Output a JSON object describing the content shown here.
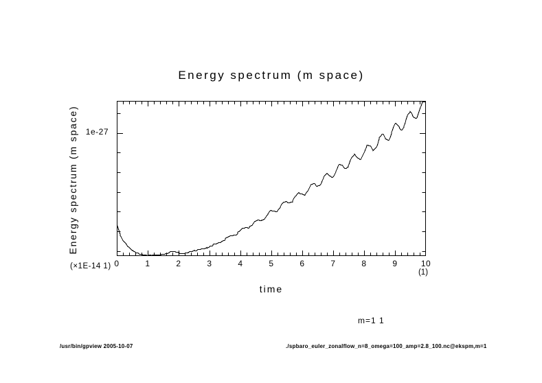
{
  "title": "Energy spectrum (m space)",
  "axes": {
    "y_label": "Energy spectrum (m space)",
    "y_tick_label": "1e-27",
    "y_factor_label": "(×1E-14 1)",
    "x_label": "time",
    "x_tick_labels": [
      "0",
      "1",
      "2",
      "3",
      "4",
      "5",
      "6",
      "7",
      "8",
      "9",
      "10"
    ],
    "x_unit_label": "(1)"
  },
  "annotation": "m=1 1",
  "footer": {
    "left": "/usr/bin/gpview  2005-10-07",
    "right": "./spbaro_euler_zonalflow_n=8_omega=100_amp=2.8_100.nc@ekspm,m=1"
  },
  "colors": {
    "foreground": "#000000",
    "background": "#ffffff"
  },
  "chart_data": {
    "type": "line",
    "title": "Energy spectrum (m space)",
    "xlabel": "time",
    "ylabel": "Energy spectrum (m space)",
    "x_unit": "(1)",
    "y_unit_factor": "(×1E-14 1)",
    "y_values_unit": "1e-27",
    "xlim": [
      0,
      10
    ],
    "ylim": [
      0,
      1.26
    ],
    "x_major_tick_step": 1,
    "x_minor_tick_step": 0.2,
    "y_major_tick_values": [
      1.0
    ],
    "y_minor_tick_values": [
      0.04,
      0.2,
      0.36,
      0.52,
      0.68,
      0.84,
      1.16
    ],
    "grid": false,
    "legend": null,
    "line_color": "#000000",
    "series": [
      {
        "name": "ekspm, m=1",
        "envelope_points": [
          [
            0.0,
            0.26
          ],
          [
            0.1,
            0.18
          ],
          [
            0.2,
            0.13
          ],
          [
            0.3,
            0.1
          ],
          [
            0.4,
            0.07
          ],
          [
            0.5,
            0.05
          ],
          [
            0.6,
            0.033
          ],
          [
            0.7,
            0.022
          ],
          [
            0.8,
            0.015
          ],
          [
            0.9,
            0.01
          ],
          [
            1.0,
            0.008
          ],
          [
            1.2,
            0.01
          ],
          [
            1.4,
            0.012
          ],
          [
            1.5,
            0.015
          ],
          [
            1.6,
            0.022
          ],
          [
            1.7,
            0.032
          ],
          [
            1.8,
            0.04
          ],
          [
            1.9,
            0.036
          ],
          [
            2.0,
            0.028
          ],
          [
            2.1,
            0.02
          ],
          [
            2.2,
            0.024
          ],
          [
            2.3,
            0.032
          ],
          [
            2.4,
            0.04
          ],
          [
            2.5,
            0.046
          ],
          [
            2.6,
            0.05
          ],
          [
            2.8,
            0.061
          ],
          [
            3.0,
            0.078
          ],
          [
            3.2,
            0.098
          ],
          [
            3.4,
            0.124
          ],
          [
            3.6,
            0.152
          ],
          [
            3.8,
            0.178
          ],
          [
            4.0,
            0.206
          ],
          [
            4.2,
            0.235
          ],
          [
            4.4,
            0.262
          ],
          [
            4.6,
            0.288
          ],
          [
            4.8,
            0.322
          ],
          [
            5.0,
            0.356
          ],
          [
            5.2,
            0.388
          ],
          [
            5.4,
            0.42
          ],
          [
            5.6,
            0.452
          ],
          [
            5.8,
            0.481
          ],
          [
            6.0,
            0.511
          ],
          [
            6.2,
            0.543
          ],
          [
            6.4,
            0.576
          ],
          [
            6.6,
            0.609
          ],
          [
            6.8,
            0.643
          ],
          [
            7.0,
            0.678
          ],
          [
            7.2,
            0.71
          ],
          [
            7.4,
            0.743
          ],
          [
            7.6,
            0.777
          ],
          [
            7.8,
            0.81
          ],
          [
            8.0,
            0.844
          ],
          [
            8.2,
            0.88
          ],
          [
            8.4,
            0.916
          ],
          [
            8.6,
            0.953
          ],
          [
            8.8,
            0.99
          ],
          [
            9.0,
            1.028
          ],
          [
            9.2,
            1.068
          ],
          [
            9.4,
            1.109
          ],
          [
            9.6,
            1.151
          ],
          [
            9.8,
            1.192
          ],
          [
            10.0,
            1.233
          ]
        ],
        "oscillation": {
          "start_t": 2.6,
          "period": 0.45,
          "amp_per_t": 0.007
        },
        "texture_ripple": {
          "period": 0.13,
          "base_amp": 0.004
        }
      }
    ]
  }
}
